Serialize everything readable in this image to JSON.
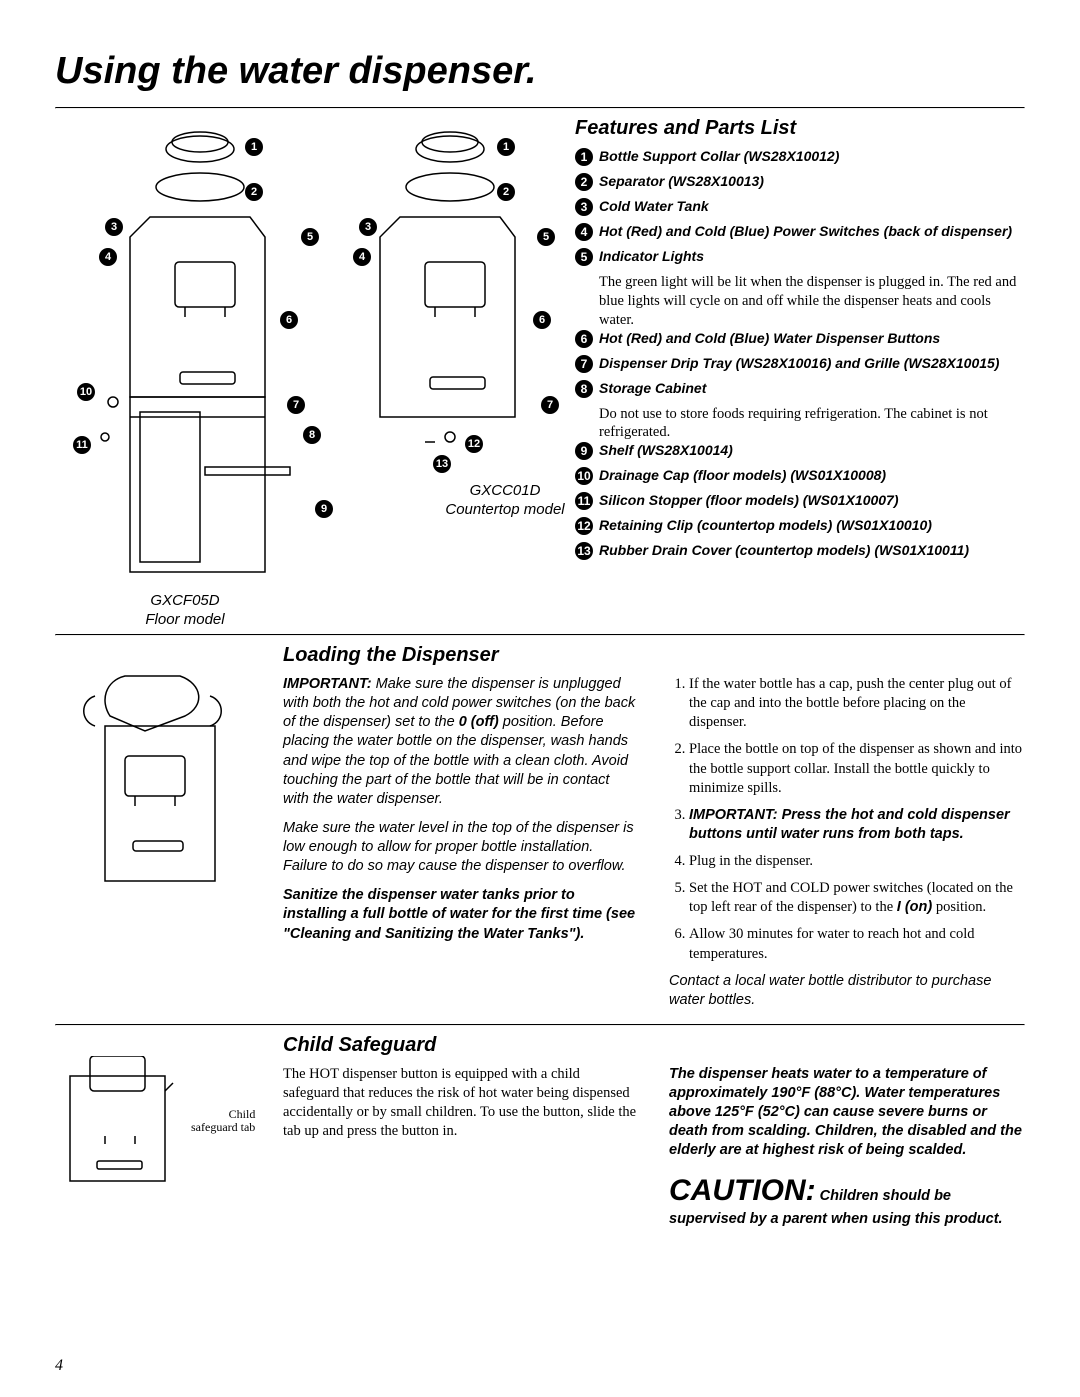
{
  "page_number": "4",
  "title": "Using the water dispenser.",
  "models": {
    "floor": {
      "code": "GXCF05D",
      "label": "Floor model"
    },
    "counter": {
      "code": "GXCC01D",
      "label": "Countertop model"
    }
  },
  "features_heading": "Features and Parts List",
  "features": [
    {
      "n": "1",
      "label": "Bottle Support Collar (WS28X10012)"
    },
    {
      "n": "2",
      "label": "Separator (WS28X10013)"
    },
    {
      "n": "3",
      "label": "Cold Water Tank"
    },
    {
      "n": "4",
      "label": "Hot (Red) and Cold (Blue) Power Switches (back of dispenser)"
    },
    {
      "n": "5",
      "label": "Indicator Lights",
      "desc": "The green light will be lit when the dispenser is plugged in. The red and blue lights will cycle on and off while the dispenser heats and cools water."
    },
    {
      "n": "6",
      "label": "Hot (Red) and Cold (Blue) Water Dispenser Buttons"
    },
    {
      "n": "7",
      "label": "Dispenser Drip Tray (WS28X10016) and Grille (WS28X10015)"
    },
    {
      "n": "8",
      "label": "Storage Cabinet",
      "desc": "Do not use to store foods requiring refrigeration. The cabinet is not refrigerated."
    },
    {
      "n": "9",
      "label": "Shelf (WS28X10014)"
    },
    {
      "n": "10",
      "label": "Drainage Cap (floor models) (WS01X10008)"
    },
    {
      "n": "11",
      "label": "Silicon Stopper (floor models) (WS01X10007)"
    },
    {
      "n": "12",
      "label": "Retaining Clip (countertop models) (WS01X10010)"
    },
    {
      "n": "13",
      "label": "Rubber Drain Cover (countertop models) (WS01X10011)"
    }
  ],
  "loading": {
    "heading": "Loading the Dispenser",
    "important_label": "IMPORTANT:",
    "important_rest": " Make sure the dispenser is unplugged with both the hot and cold power switches (on the back of the dispenser) set to the ",
    "zero_off": "0 (off)",
    "important_rest2": " position. Before placing the water bottle on the dispenser, wash hands and wipe the top of the bottle with a clean cloth. Avoid touching the part of the bottle that will be in contact with the water dispenser.",
    "para2": "Make sure the water level in the top of the dispenser is low enough to allow for proper bottle installation. Failure to do so may cause the dispenser to overflow.",
    "para3": "Sanitize the dispenser water tanks prior to installing a full bottle of water for the first time (see \"Cleaning and Sanitizing the Water Tanks\").",
    "steps": [
      "If the water bottle has a cap, push the center plug out of the cap and into the bottle before placing on the dispenser.",
      "Place the bottle on top of the dispenser as shown and into the bottle support collar. Install the bottle quickly to minimize spills.",
      "",
      "Plug in the dispenser.",
      "",
      "Allow 30 minutes for water to reach hot and cold temperatures."
    ],
    "step3": "IMPORTANT: Press the hot and cold dispenser buttons until water runs from both taps.",
    "step5_pre": "Set the HOT and COLD power switches (located on the top left rear of the dispenser) to the ",
    "step5_i": "I (on)",
    "step5_post": " position.",
    "bottles_note": "Contact a local water bottle distributor to purchase water bottles."
  },
  "child": {
    "heading": "Child Safeguard",
    "tab_label_l1": "Child",
    "tab_label_l2": "safeguard tab",
    "para1": "The HOT dispenser button is equipped with a child safeguard that reduces the risk of hot water being dispensed accidentally or by small children. To use the button, slide the tab up and press the button in.",
    "warn": "The dispenser heats water to a temperature of approximately 190°F (88°C). Water temperatures above 125°F (52°C) can cause severe burns or death from scalding. Children, the disabled and the elderly are at highest risk of being scalded.",
    "caution_word": "CAUTION:",
    "caution_rest": " Children should be supervised by a parent when using this product."
  },
  "colors": {
    "ink": "#000000"
  }
}
